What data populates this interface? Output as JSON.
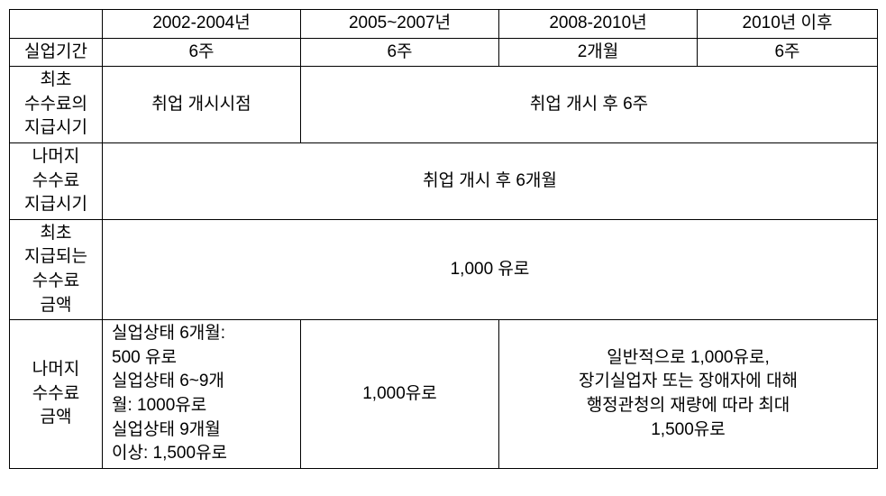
{
  "header": {
    "col1": "2002-2004년",
    "col2": "2005~2007년",
    "col3": "2008-2010년",
    "col4": "2010년 이후"
  },
  "rows": {
    "r1": {
      "label": "실업기간",
      "c1": "6주",
      "c2": "6주",
      "c3": "2개월",
      "c4": "6주"
    },
    "r2": {
      "label": "최초\n수수료의\n지급시기",
      "c1": "취업 개시시점",
      "c234": "취업 개시 후 6주"
    },
    "r3": {
      "label": "나머지\n수수료\n지급시기",
      "c1234": "취업 개시 후 6개월"
    },
    "r4": {
      "label": "최초\n지급되는\n수수료\n금액",
      "c1234": "1,000 유로"
    },
    "r5": {
      "label": "나머지\n수수료\n금액",
      "c1": "실업상태   6개월:\n500 유로\n실업상태   6~9개\n월: 1000유로\n실업상태   9개월\n이상: 1,500유로",
      "c2": "1,000유로",
      "c34": "일반적으로 1,000유로,\n장기실업자 또는 장애자에 대해\n행정관청의 재량에 따라 최대\n1,500유로"
    }
  }
}
